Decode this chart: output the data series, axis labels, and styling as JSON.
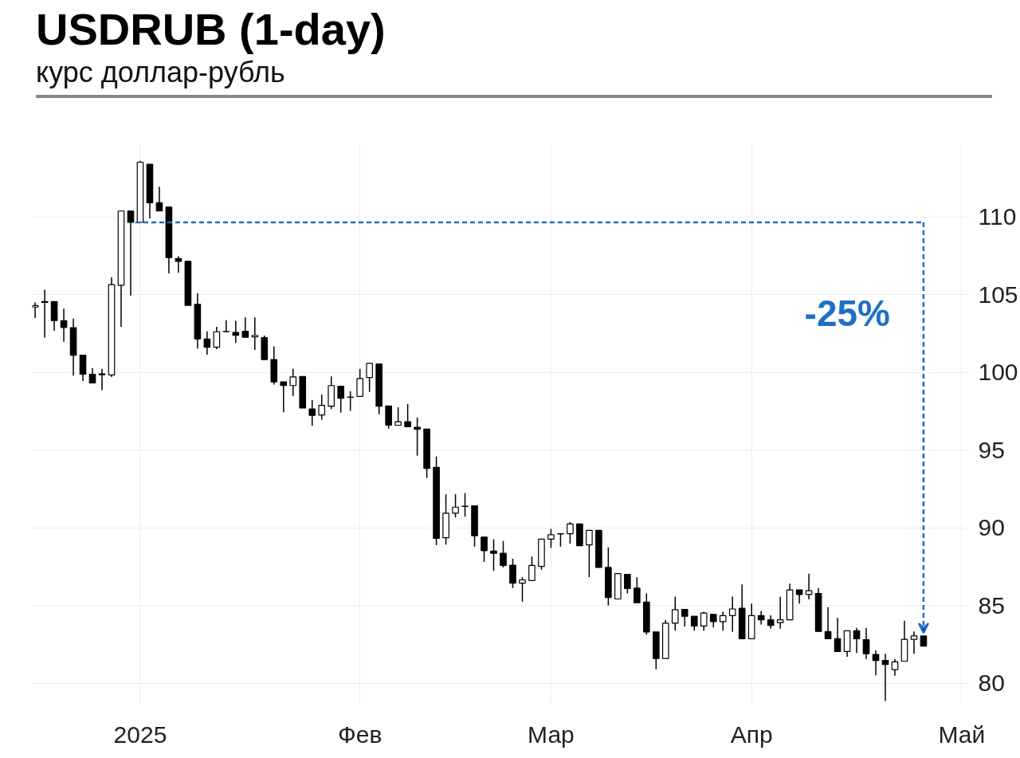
{
  "chart_data": {
    "type": "candlestick",
    "title": "USDRUB (1-day)",
    "subtitle": "курс доллар-рубль",
    "categories": [
      null,
      null,
      null,
      null,
      null,
      null,
      null,
      null,
      null,
      null,
      null,
      "2025",
      null,
      null,
      null,
      null,
      null,
      null,
      null,
      null,
      null,
      null,
      null,
      null,
      null,
      null,
      null,
      null,
      null,
      null,
      null,
      null,
      null,
      null,
      "Фев",
      null,
      null,
      null,
      null,
      null,
      null,
      null,
      null,
      null,
      null,
      null,
      null,
      null,
      null,
      null,
      null,
      null,
      null,
      null,
      "Мар",
      null,
      null,
      null,
      null,
      null,
      null,
      null,
      null,
      null,
      null,
      null,
      null,
      null,
      null,
      null,
      null,
      null,
      null,
      null,
      null,
      "Апр",
      null,
      null,
      null,
      null,
      null,
      null,
      null,
      null,
      null,
      null,
      null,
      null,
      null,
      null,
      null,
      null,
      null,
      null,
      null,
      null,
      null,
      "Май"
    ],
    "ohlc": [
      [
        104.2,
        104.5,
        103.5,
        104.3
      ],
      [
        104.55,
        105.32,
        102.24,
        104.5
      ],
      [
        104.55,
        104.55,
        102.67,
        103.33
      ],
      [
        103.33,
        104.1,
        101.97,
        102.88
      ],
      [
        102.88,
        103.46,
        99.79,
        101.1
      ],
      [
        101.1,
        101.1,
        99.44,
        99.88
      ],
      [
        99.88,
        100.28,
        99.32,
        99.32
      ],
      [
        99.85,
        100.23,
        98.86,
        99.9
      ],
      [
        99.84,
        106.13,
        99.7,
        105.64
      ],
      [
        105.6,
        110.4,
        102.93,
        110.38
      ],
      [
        110.38,
        110.4,
        104.94,
        109.65
      ],
      [
        109.65,
        113.61,
        109.65,
        113.52
      ],
      [
        113.39,
        113.4,
        109.91,
        110.91
      ],
      [
        110.91,
        111.95,
        110.38,
        110.38
      ],
      [
        110.63,
        110.63,
        106.37,
        107.38
      ],
      [
        107.33,
        107.47,
        106.4,
        107.14
      ],
      [
        107.15,
        107.15,
        104.31,
        104.31
      ],
      [
        104.38,
        105.08,
        101.54,
        102.15
      ],
      [
        102.15,
        102.64,
        101.14,
        101.62
      ],
      [
        101.62,
        102.93,
        101.49,
        102.61
      ],
      [
        102.62,
        103.36,
        102.6,
        102.63
      ],
      [
        102.57,
        103.32,
        101.89,
        102.38
      ],
      [
        102.64,
        103.53,
        102.26,
        102.26
      ],
      [
        102.28,
        103.53,
        101.45,
        102.38
      ],
      [
        102.23,
        102.37,
        100.82,
        100.82
      ],
      [
        100.83,
        101.67,
        99.21,
        99.39
      ],
      [
        99.39,
        99.39,
        97.43,
        99.15
      ],
      [
        99.15,
        100.23,
        98.47,
        99.71
      ],
      [
        99.74,
        99.74,
        97.7,
        97.7
      ],
      [
        97.64,
        98.22,
        96.56,
        97.23
      ],
      [
        97.26,
        98.57,
        96.95,
        97.87
      ],
      [
        97.82,
        99.74,
        97.64,
        99.15
      ],
      [
        99.1,
        99.1,
        97.4,
        98.34
      ],
      [
        98.4,
        98.79,
        97.52,
        98.42
      ],
      [
        98.45,
        100.22,
        98.45,
        99.6
      ],
      [
        99.67,
        100.6,
        98.74,
        100.58
      ],
      [
        100.54,
        100.56,
        97.3,
        97.82
      ],
      [
        97.84,
        97.84,
        96.38,
        96.61
      ],
      [
        96.6,
        97.75,
        96.6,
        96.82
      ],
      [
        96.82,
        97.96,
        96.5,
        96.5
      ],
      [
        96.47,
        97.1,
        94.64,
        96.35
      ],
      [
        96.35,
        96.35,
        93.21,
        93.82
      ],
      [
        93.89,
        94.59,
        88.88,
        89.32
      ],
      [
        89.36,
        92.16,
        88.92,
        90.94
      ],
      [
        90.94,
        92.16,
        90.66,
        91.33
      ],
      [
        91.37,
        92.23,
        90.71,
        91.39
      ],
      [
        91.42,
        91.42,
        88.79,
        89.49
      ],
      [
        89.4,
        89.4,
        87.8,
        88.53
      ],
      [
        88.5,
        89.27,
        87.23,
        88.36
      ],
      [
        88.36,
        89.15,
        87.45,
        87.58
      ],
      [
        87.6,
        88.01,
        86.12,
        86.44
      ],
      [
        86.44,
        86.82,
        85.25,
        86.65
      ],
      [
        86.61,
        88.15,
        86.61,
        87.58
      ],
      [
        87.52,
        89.27,
        87.31,
        89.27
      ],
      [
        89.27,
        89.93,
        88.71,
        89.55
      ],
      [
        89.6,
        89.62,
        88.79,
        89.62
      ],
      [
        89.62,
        90.37,
        88.98,
        90.25
      ],
      [
        90.25,
        90.25,
        88.85,
        88.85
      ],
      [
        88.9,
        89.84,
        86.82,
        89.84
      ],
      [
        89.84,
        89.84,
        87.45,
        87.45
      ],
      [
        87.45,
        88.74,
        85.0,
        85.51
      ],
      [
        85.42,
        87.05,
        85.4,
        87.05
      ],
      [
        87.01,
        87.01,
        85.78,
        86.09
      ],
      [
        86.12,
        86.82,
        85.18,
        85.18
      ],
      [
        85.22,
        85.78,
        83.12,
        83.3
      ],
      [
        83.3,
        83.3,
        80.9,
        81.59
      ],
      [
        81.59,
        84.08,
        81.59,
        83.86
      ],
      [
        83.86,
        85.57,
        83.38,
        84.73
      ],
      [
        84.75,
        84.75,
        83.65,
        84.31
      ],
      [
        84.31,
        84.31,
        83.38,
        83.68
      ],
      [
        83.68,
        84.6,
        83.38,
        84.52
      ],
      [
        84.43,
        84.43,
        83.6,
        83.96
      ],
      [
        83.96,
        84.6,
        83.38,
        84.35
      ],
      [
        84.35,
        85.57,
        83.3,
        84.78
      ],
      [
        84.82,
        86.35,
        82.86,
        82.86
      ],
      [
        82.86,
        85.13,
        82.86,
        84.35
      ],
      [
        84.35,
        84.65,
        83.78,
        84.08
      ],
      [
        84.08,
        84.37,
        83.51,
        83.72
      ],
      [
        83.9,
        85.56,
        83.51,
        84.08
      ],
      [
        84.08,
        86.41,
        84.08,
        86.0
      ],
      [
        86.0,
        86.0,
        85.13,
        85.71
      ],
      [
        85.71,
        87.05,
        85.4,
        85.95
      ],
      [
        85.78,
        86.13,
        83.33,
        83.33
      ],
      [
        83.33,
        84.9,
        82.86,
        82.86
      ],
      [
        82.86,
        84.2,
        82.04,
        82.04
      ],
      [
        82.04,
        83.38,
        81.7,
        83.38
      ],
      [
        83.38,
        83.56,
        81.94,
        82.86
      ],
      [
        82.8,
        83.56,
        81.56,
        81.9
      ],
      [
        81.85,
        82.11,
        80.51,
        81.47
      ],
      [
        81.47,
        81.9,
        78.85,
        81.21
      ],
      [
        80.88,
        81.56,
        80.48,
        81.38
      ],
      [
        81.42,
        84.02,
        81.42,
        82.82
      ],
      [
        82.82,
        83.33,
        81.9,
        83.04
      ],
      [
        83.04,
        83.04,
        82.39,
        82.39
      ],
      null,
      null,
      null,
      null
    ],
    "ylim": [
      78.6,
      114.7
    ],
    "yticks": [
      80,
      85,
      90,
      95,
      100,
      105,
      110
    ],
    "grid": true,
    "ref_lines": [
      {
        "axis": "y",
        "value": 109.65,
        "color": "#1f6fc5",
        "line_style": "dashed"
      }
    ],
    "annotations": [
      "-25%"
    ]
  }
}
